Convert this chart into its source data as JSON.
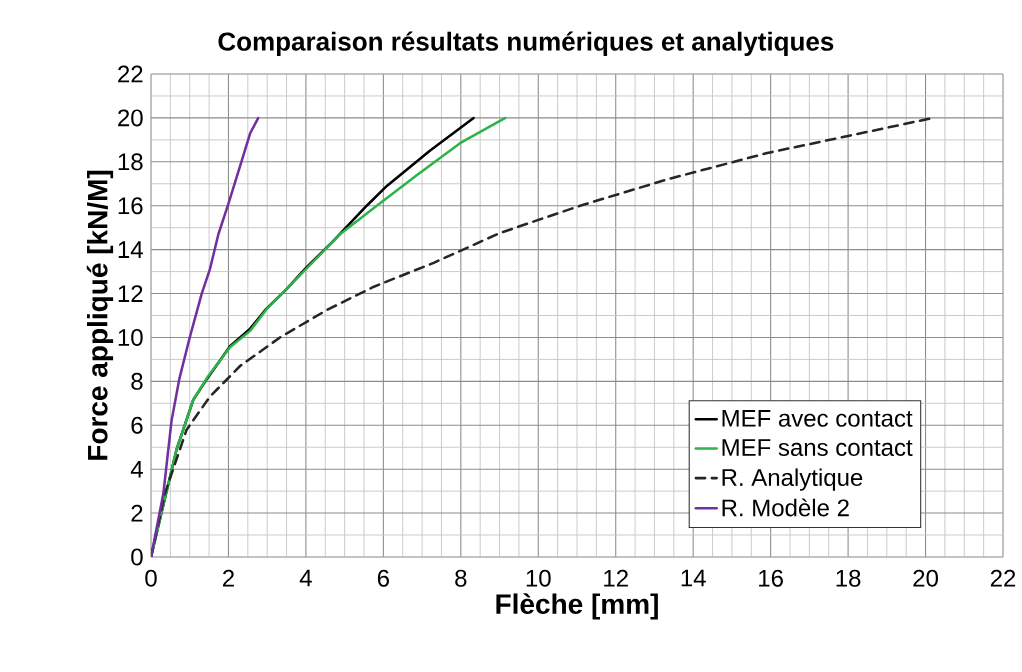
{
  "chart_data": {
    "type": "line",
    "title": "Comparaison résultats numériques et analytiques",
    "xlabel": "Flèche [mm]",
    "ylabel": "Force appliqué [kN/M]",
    "xlim": [
      0,
      22
    ],
    "ylim": [
      0,
      22
    ],
    "xticks": [
      0,
      2,
      4,
      6,
      8,
      10,
      12,
      14,
      16,
      18,
      20,
      22
    ],
    "yticks": [
      0,
      2,
      4,
      6,
      8,
      10,
      12,
      14,
      16,
      18,
      20,
      22
    ],
    "grid": true,
    "legend": "bottom right",
    "marker": "none",
    "series": [
      {
        "name": "MEF avec contact",
        "color": "#000000",
        "line_style": "solid",
        "x": [
          0,
          0.66,
          1.09,
          1.44,
          2.04,
          2.56,
          2.95,
          3.5,
          4.02,
          4.71,
          5.57,
          6.09,
          7.2,
          8.33
        ],
        "values": [
          0,
          4.9,
          7.15,
          8.1,
          9.6,
          10.4,
          11.25,
          12.2,
          13.2,
          14.4,
          16.0,
          16.9,
          18.5,
          20.0
        ]
      },
      {
        "name": "MEF sans contact",
        "color": "#2db34a",
        "line_style": "solid",
        "x": [
          0,
          0.66,
          1.09,
          1.46,
          2.04,
          2.56,
          2.99,
          3.94,
          4.88,
          5.83,
          6.87,
          7.98,
          9.15
        ],
        "values": [
          0,
          4.9,
          7.15,
          8.2,
          9.55,
          10.3,
          11.3,
          13.0,
          14.7,
          16.0,
          17.4,
          18.85,
          20.0
        ]
      },
      {
        "name": "R. Analytique",
        "color": "#262626",
        "line_style": "dashed",
        "x": [
          0,
          0.36,
          0.92,
          1.52,
          2.3,
          3.33,
          4.54,
          5.74,
          7.3,
          9.0,
          11.08,
          13.33,
          15.91,
          18.06,
          20.2
        ],
        "values": [
          0,
          2.9,
          5.8,
          7.3,
          8.7,
          10.0,
          11.25,
          12.3,
          13.4,
          14.75,
          16.0,
          17.2,
          18.4,
          19.2,
          20.0
        ]
      },
      {
        "name": "R. Modèle 2",
        "color": "#7030a0",
        "line_style": "solid",
        "x": [
          0,
          0.32,
          0.53,
          0.73,
          1.0,
          1.31,
          1.52,
          1.74,
          2.0,
          2.3,
          2.56,
          2.77
        ],
        "values": [
          0,
          2.9,
          6.2,
          8.1,
          10.0,
          12.0,
          13.1,
          14.7,
          16.1,
          17.8,
          19.3,
          20.0
        ]
      }
    ]
  }
}
